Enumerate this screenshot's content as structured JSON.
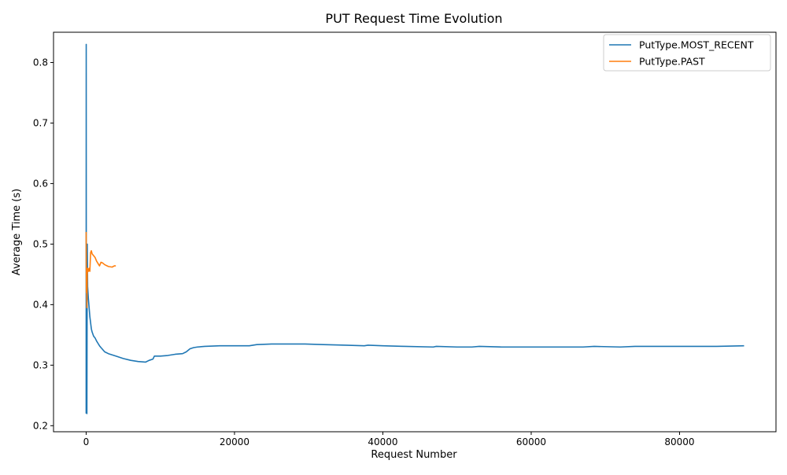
{
  "chart_data": {
    "type": "line",
    "title": "PUT Request Time Evolution",
    "xlabel": "Request Number",
    "ylabel": "Average Time (s)",
    "xlim": [
      -4400,
      93000
    ],
    "ylim": [
      0.19,
      0.85
    ],
    "xticks": [
      0,
      20000,
      40000,
      60000,
      80000
    ],
    "xtick_labels": [
      "0",
      "20000",
      "40000",
      "60000",
      "80000"
    ],
    "yticks": [
      0.2,
      0.3,
      0.4,
      0.5,
      0.6,
      0.7,
      0.8
    ],
    "ytick_labels": [
      "0.2",
      "0.3",
      "0.4",
      "0.5",
      "0.6",
      "0.7",
      "0.8"
    ],
    "grid": false,
    "legend_position": "top-right",
    "series": [
      {
        "name": "PutType.MOST_RECENT",
        "color": "#1f77b4",
        "x": [
          0,
          10,
          20,
          40,
          60,
          80,
          100,
          150,
          200,
          300,
          400,
          500,
          600,
          700,
          800,
          1000,
          1200,
          1400,
          1600,
          1800,
          2000,
          2500,
          3000,
          3500,
          4000,
          5000,
          6000,
          7000,
          8000,
          8500,
          9000,
          9200,
          10000,
          11000,
          12000,
          13000,
          13500,
          14000,
          14500,
          15000,
          16000,
          18000,
          20000,
          22000,
          23000,
          25000,
          27000,
          29500,
          32000,
          35000,
          37500,
          38000,
          40000,
          43000,
          46800,
          47200,
          50000,
          52000,
          53000,
          56000,
          59000,
          60000,
          63000,
          67000,
          68500,
          72000,
          74000,
          75000,
          78000,
          82000,
          82500,
          85000,
          88700
        ],
        "values": [
          0.22,
          0.83,
          0.3,
          0.5,
          0.25,
          0.45,
          0.22,
          0.5,
          0.43,
          0.41,
          0.395,
          0.38,
          0.37,
          0.36,
          0.355,
          0.348,
          0.345,
          0.34,
          0.336,
          0.332,
          0.329,
          0.322,
          0.319,
          0.317,
          0.315,
          0.311,
          0.308,
          0.306,
          0.305,
          0.308,
          0.31,
          0.315,
          0.315,
          0.316,
          0.318,
          0.319,
          0.322,
          0.327,
          0.329,
          0.33,
          0.331,
          0.332,
          0.332,
          0.332,
          0.334,
          0.335,
          0.335,
          0.335,
          0.334,
          0.333,
          0.332,
          0.333,
          0.332,
          0.331,
          0.33,
          0.331,
          0.33,
          0.33,
          0.331,
          0.33,
          0.33,
          0.33,
          0.33,
          0.33,
          0.331,
          0.33,
          0.331,
          0.331,
          0.331,
          0.331,
          0.331,
          0.331,
          0.332
        ]
      },
      {
        "name": "PutType.PAST",
        "color": "#ff7f0e",
        "x": [
          0,
          30,
          60,
          100,
          150,
          200,
          300,
          400,
          500,
          600,
          700,
          800,
          1000,
          1200,
          1400,
          1600,
          1800,
          2000,
          2200,
          2500,
          3000,
          3500,
          3800,
          4000
        ],
        "values": [
          0.52,
          0.42,
          0.46,
          0.395,
          0.45,
          0.46,
          0.455,
          0.46,
          0.455,
          0.486,
          0.489,
          0.484,
          0.481,
          0.478,
          0.472,
          0.468,
          0.464,
          0.47,
          0.469,
          0.466,
          0.463,
          0.462,
          0.464,
          0.464
        ]
      }
    ]
  }
}
